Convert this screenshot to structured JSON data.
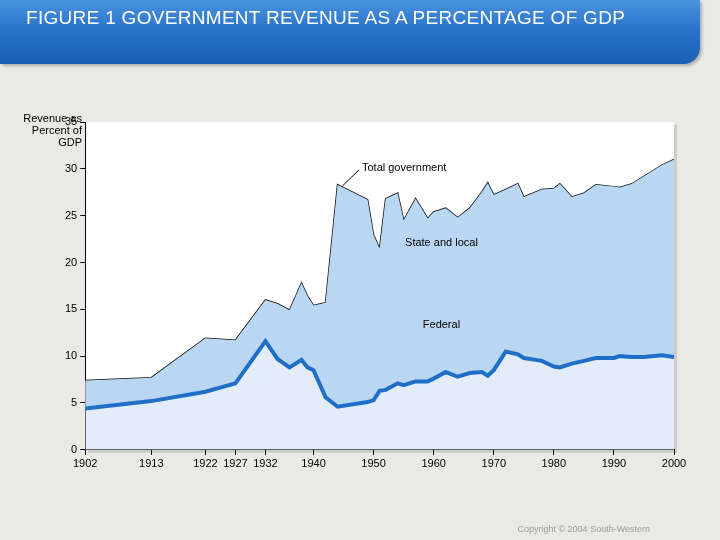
{
  "chart_data": {
    "type": "area",
    "title": "FIGURE 1 GOVERNMENT REVENUE AS A PERCENTAGE OF GDP",
    "y_label": "Revenue as Percent of GDP",
    "x": [
      1902,
      1913,
      1922,
      1927,
      1932,
      1934,
      1936,
      1938,
      1939,
      1940,
      1942,
      1944,
      1949,
      1950,
      1951,
      1952,
      1954,
      1955,
      1957,
      1959,
      1960,
      1962,
      1964,
      1966,
      1968,
      1969,
      1970,
      1972,
      1974,
      1975,
      1978,
      1980,
      1981,
      1983,
      1985,
      1987,
      1990,
      1991,
      1993,
      1995,
      1998,
      2000
    ],
    "series": [
      {
        "name": "Federal",
        "color": "#111111",
        "values": [
          3.0,
          2.5,
          5.7,
          4.6,
          4.4,
          5.9,
          6.1,
          8.2,
          7.6,
          6.9,
          10.1,
          23.7,
          21.6,
          17.6,
          15.2,
          20.4,
          20.3,
          17.6,
          19.5,
          17.4,
          17.8,
          17.5,
          17.0,
          17.6,
          19.2,
          20.6,
          18.7,
          17.3,
          18.2,
          17.2,
          18.3,
          19.0,
          19.6,
          17.8,
          17.9,
          18.5,
          18.3,
          18.0,
          18.5,
          19.3,
          20.3,
          21.1
        ]
      },
      {
        "name": "State and local",
        "color": "#1f6fc8",
        "values": [
          4.4,
          5.2,
          6.2,
          7.1,
          11.6,
          9.7,
          8.8,
          9.6,
          8.8,
          8.5,
          5.6,
          4.6,
          5.1,
          5.3,
          6.3,
          6.4,
          7.1,
          6.9,
          7.3,
          7.3,
          7.6,
          8.3,
          7.8,
          8.2,
          8.3,
          7.9,
          8.5,
          10.5,
          10.2,
          9.8,
          9.5,
          8.9,
          8.8,
          9.2,
          9.5,
          9.8,
          9.8,
          10.0,
          9.9,
          9.9,
          10.1,
          9.9
        ]
      }
    ],
    "annotations": [
      "Total government"
    ],
    "stacked": true,
    "marker": "none",
    "xlim": [
      1902,
      2000
    ],
    "xticks": [
      1902,
      1913,
      1922,
      1927,
      1932,
      1940,
      1950,
      1960,
      1970,
      1980,
      1990,
      2000
    ],
    "ylim": [
      0,
      35
    ],
    "yticks": [
      0,
      5,
      10,
      15,
      20,
      25,
      30,
      35
    ],
    "grid": false,
    "footer": "Copyright © 2004 South-Western"
  }
}
